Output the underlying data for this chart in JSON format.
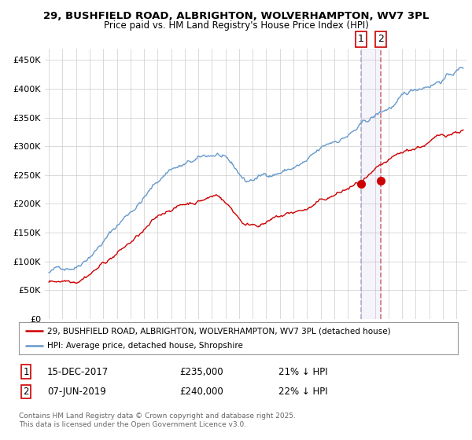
{
  "title1": "29, BUSHFIELD ROAD, ALBRIGHTON, WOLVERHAMPTON, WV7 3PL",
  "title2": "Price paid vs. HM Land Registry's House Price Index (HPI)",
  "ylabel_ticks": [
    "£0",
    "£50K",
    "£100K",
    "£150K",
    "£200K",
    "£250K",
    "£300K",
    "£350K",
    "£400K",
    "£450K"
  ],
  "ytick_vals": [
    0,
    50000,
    100000,
    150000,
    200000,
    250000,
    300000,
    350000,
    400000,
    450000
  ],
  "ylim": [
    0,
    470000
  ],
  "xlim_start": 1994.7,
  "xlim_end": 2025.8,
  "legend_line1": "29, BUSHFIELD ROAD, ALBRIGHTON, WOLVERHAMPTON, WV7 3PL (detached house)",
  "legend_line2": "HPI: Average price, detached house, Shropshire",
  "color_red": "#cc0000",
  "color_blue": "#6699cc",
  "color_vline1": "#aaaacc",
  "color_vline2": "#cc4444",
  "marker1_x": 2017.96,
  "marker1_y": 235000,
  "marker2_x": 2019.44,
  "marker2_y": 240000,
  "vline1_x": 2017.96,
  "vline2_x": 2019.44,
  "footnote": "Contains HM Land Registry data © Crown copyright and database right 2025.\nThis data is licensed under the Open Government Licence v3.0.",
  "background_color": "#ffffff",
  "grid_color": "#cccccc"
}
